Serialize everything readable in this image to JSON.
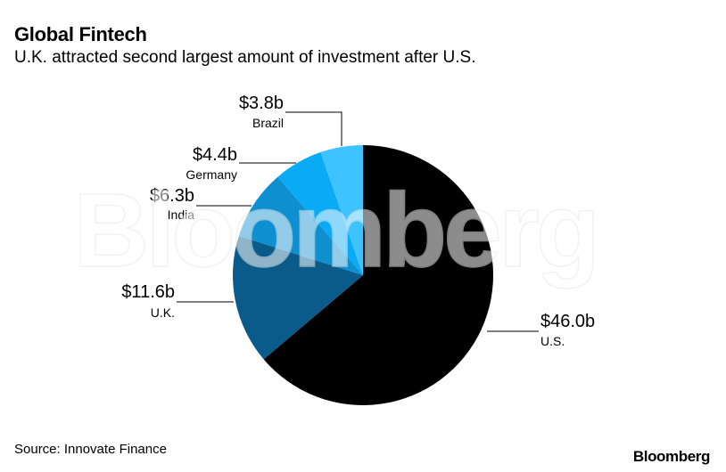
{
  "header": {
    "title": "Global Fintech",
    "subtitle": "U.K. attracted second largest amount of investment after U.S."
  },
  "watermark": "Bloomberg",
  "footer": {
    "source": "Source: Innovate Finance",
    "brand": "Bloomberg"
  },
  "chart_data": {
    "type": "pie",
    "title": "Global Fintech",
    "subtitle": "U.K. attracted second largest amount of investment after U.S.",
    "slices": [
      {
        "label": "U.S.",
        "value": 46.0,
        "display": "$46.0b",
        "color": "#000000"
      },
      {
        "label": "U.K.",
        "value": 11.6,
        "display": "$11.6b",
        "color": "#0a5a8a"
      },
      {
        "label": "India",
        "value": 6.3,
        "display": "$6.3b",
        "color": "#0e8fd0"
      },
      {
        "label": "Germany",
        "value": 4.4,
        "display": "$4.4b",
        "color": "#0aaaf5"
      },
      {
        "label": "Brazil",
        "value": 3.8,
        "display": "$3.8b",
        "color": "#3fc3ff"
      }
    ],
    "start": "12 o'clock",
    "direction": "clockwise",
    "legend": "none"
  }
}
